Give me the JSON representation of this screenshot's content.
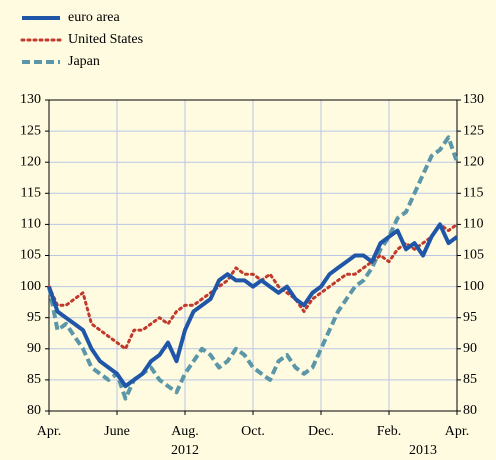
{
  "chart_data": {
    "type": "line",
    "categories": [
      "Apr.",
      null,
      null,
      null,
      null,
      null,
      null,
      null,
      "June",
      null,
      null,
      null,
      null,
      null,
      null,
      null,
      "Aug.",
      null,
      null,
      null,
      null,
      null,
      null,
      null,
      "Oct.",
      null,
      null,
      null,
      null,
      null,
      null,
      null,
      "Dec.",
      null,
      null,
      null,
      null,
      null,
      null,
      null,
      "Feb.",
      null,
      null,
      null,
      null,
      null,
      null,
      null,
      "Apr."
    ],
    "x_year_labels": [
      "2012",
      "2013"
    ],
    "series": [
      {
        "name": "euro area",
        "color": "#1f56a8",
        "style": "solid",
        "values": [
          100,
          96,
          95,
          94,
          93,
          90,
          88,
          87,
          86,
          84,
          85,
          86,
          88,
          89,
          91,
          88,
          93,
          96,
          97,
          98,
          101,
          102,
          101,
          101,
          100,
          101,
          100,
          99,
          100,
          98,
          97,
          99,
          100,
          102,
          103,
          104,
          105,
          105,
          104,
          107,
          108,
          109,
          106,
          107,
          105,
          108,
          110,
          107,
          108
        ]
      },
      {
        "name": "United States",
        "color": "#c0392b",
        "style": "dotted",
        "values": [
          100,
          97,
          97,
          98,
          99,
          94,
          93,
          92,
          91,
          90,
          93,
          93,
          94,
          95,
          94,
          96,
          97,
          97,
          98,
          99,
          100,
          101,
          103,
          102,
          102,
          101,
          102,
          100,
          99,
          98,
          96,
          98,
          99,
          100,
          101,
          102,
          102,
          103,
          104,
          105,
          104,
          106,
          107,
          106,
          107,
          108,
          110,
          109,
          110
        ]
      },
      {
        "name": "Japan",
        "color": "#5b97a8",
        "style": "dashed",
        "values": [
          100,
          93,
          94,
          92,
          90,
          87,
          86,
          85,
          86,
          82,
          85,
          86,
          87,
          85,
          84,
          83,
          86,
          88,
          90,
          89,
          87,
          88,
          90,
          89,
          87,
          86,
          85,
          88,
          89,
          87,
          86,
          87,
          90,
          93,
          96,
          98,
          100,
          101,
          103,
          106,
          108,
          111,
          112,
          115,
          118,
          121,
          122,
          124,
          120
        ]
      }
    ],
    "ylim": [
      80,
      130
    ],
    "yticks": [
      80,
      85,
      90,
      95,
      100,
      105,
      110,
      115,
      120,
      125,
      130
    ],
    "grid": true,
    "legend": "top-left"
  }
}
